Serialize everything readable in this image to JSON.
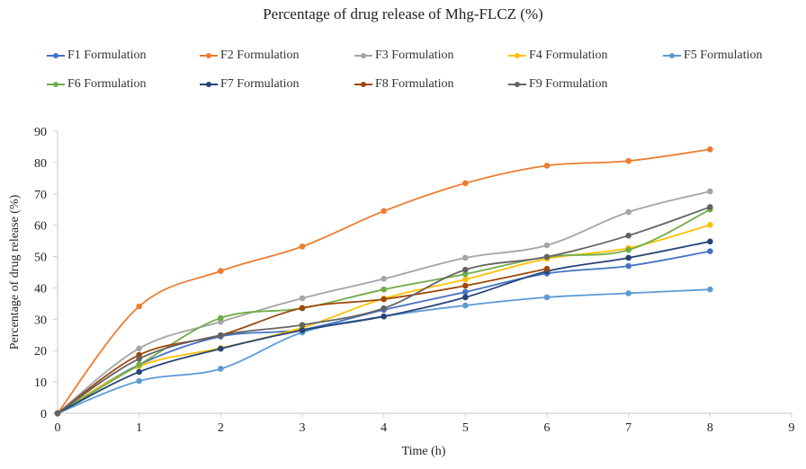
{
  "chart_data": {
    "type": "line",
    "title": "Percentage of drug release of Mhg-FLCZ (%)",
    "xlabel": "Time (h)",
    "ylabel": "Percentage of drug release (%)",
    "xlim": [
      0,
      9
    ],
    "ylim": [
      0,
      90
    ],
    "x_ticks": [
      0,
      1,
      2,
      3,
      4,
      5,
      6,
      7,
      8,
      9
    ],
    "y_ticks": [
      0,
      10,
      20,
      30,
      40,
      50,
      60,
      70,
      80,
      90
    ],
    "grid": false,
    "legend_position": "top",
    "smooth": true,
    "x": [
      0,
      1,
      2,
      3,
      4,
      5,
      6,
      7,
      8
    ],
    "series": [
      {
        "name": "F1 Formulation",
        "color": "#4472C4",
        "values": [
          0,
          15.5,
          24.5,
          26.7,
          33.0,
          38.7,
          44.6,
          47.0,
          51.7
        ]
      },
      {
        "name": "F2 Formulation",
        "color": "#ED7D31",
        "values": [
          0,
          34.1,
          45.4,
          53.2,
          64.5,
          73.4,
          79.0,
          80.5,
          84.2
        ]
      },
      {
        "name": "F3 Formulation",
        "color": "#A5A5A5",
        "values": [
          0,
          20.7,
          29.2,
          36.7,
          42.9,
          49.6,
          53.6,
          64.2,
          70.8
        ]
      },
      {
        "name": "F4 Formulation",
        "color": "#FFC000",
        "values": [
          0,
          15.0,
          20.8,
          27.3,
          36.6,
          42.7,
          49.3,
          52.7,
          60.1
        ]
      },
      {
        "name": "F5 Formulation",
        "color": "#5B9BD5",
        "values": [
          0,
          10.3,
          14.2,
          25.8,
          30.9,
          34.4,
          37.0,
          38.3,
          39.5
        ]
      },
      {
        "name": "F6 Formulation",
        "color": "#70AD47",
        "values": [
          0,
          15.5,
          30.4,
          33.5,
          39.5,
          44.4,
          49.9,
          52.1,
          65.0
        ]
      },
      {
        "name": "F7 Formulation",
        "color": "#264478",
        "values": [
          0,
          13.2,
          20.6,
          26.5,
          30.9,
          37.0,
          45.3,
          49.6,
          54.8
        ]
      },
      {
        "name": "F8 Formulation",
        "color": "#9E480E",
        "values": [
          0,
          18.6,
          24.9,
          33.6,
          36.4,
          40.7,
          46.1,
          null,
          null
        ]
      },
      {
        "name": "F9 Formulation",
        "color": "#636363",
        "values": [
          0,
          17.4,
          24.9,
          28.2,
          33.5,
          45.8,
          49.9,
          56.7,
          65.8
        ]
      }
    ]
  }
}
